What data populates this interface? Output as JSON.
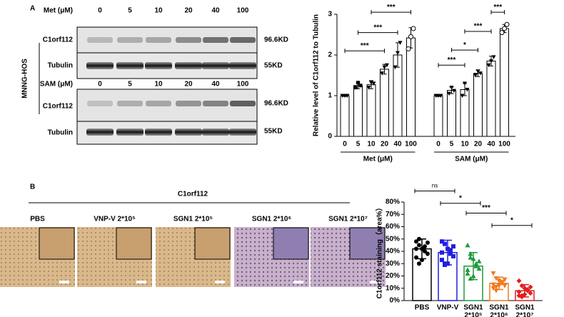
{
  "panels": {
    "a": "A",
    "b": "B"
  },
  "blot": {
    "cell_line": "MNNG-HOS",
    "band_sizes": {
      "c1orf112": "96.6KD",
      "tubulin": "55KD"
    },
    "row_labels": {
      "c1orf112": "C1orf112",
      "tubulin": "Tubulin"
    },
    "blocks": [
      {
        "treatment": "Met (μM)",
        "doses": [
          0,
          5,
          10,
          20,
          40,
          100
        ]
      },
      {
        "treatment": "SAM (μM)",
        "doses": [
          0,
          5,
          10,
          20,
          40,
          100
        ]
      }
    ]
  },
  "ihc": {
    "title": "C1orf112",
    "images": [
      "PBS",
      "VNP-V 2*10⁵",
      "SGN1 2*10⁵",
      "SGN1 2*10⁶",
      "SGN1 2*10⁷"
    ]
  },
  "chart_data": [
    {
      "type": "bar",
      "y_label": "Relative level of C1orf112 to Tubulin",
      "ylim": [
        0,
        3
      ],
      "yticks": [
        0,
        1,
        2,
        3
      ],
      "categories": [
        "0",
        "5",
        "10",
        "20",
        "40",
        "100"
      ],
      "series": [
        {
          "name": "Met (μM)",
          "color": "#000000",
          "values": [
            1.0,
            1.25,
            1.27,
            1.65,
            2.0,
            2.42
          ],
          "errors": [
            0.02,
            0.08,
            0.1,
            0.12,
            0.3,
            0.25
          ],
          "points": [
            [
              1,
              1,
              1
            ],
            [
              1.2,
              1.32,
              1.25
            ],
            [
              1.2,
              1.32,
              1.3
            ],
            [
              1.55,
              1.7,
              1.75
            ],
            [
              1.7,
              2.05,
              2.3
            ],
            [
              2.15,
              2.45,
              2.65
            ]
          ],
          "annotations": [
            {
              "from": 0,
              "to": 3,
              "y": 2.1,
              "label": "***"
            },
            {
              "from": 1,
              "to": 4,
              "y": 2.55,
              "label": "***"
            },
            {
              "from": 2,
              "to": 5,
              "y": 3.05,
              "label": "***"
            }
          ]
        },
        {
          "name": "SAM (μM)",
          "color": "#000000",
          "values": [
            1.0,
            1.13,
            1.15,
            1.55,
            1.85,
            2.65
          ],
          "errors": [
            0.02,
            0.08,
            0.15,
            0.08,
            0.12,
            0.1
          ],
          "points": [
            [
              1,
              1,
              1
            ],
            [
              1.05,
              1.2,
              1.12
            ],
            [
              1.0,
              1.3,
              1.15
            ],
            [
              1.5,
              1.6,
              1.55
            ],
            [
              1.75,
              1.85,
              1.95
            ],
            [
              2.55,
              2.65,
              2.75
            ]
          ],
          "annotations": [
            {
              "from": 0,
              "to": 2,
              "y": 1.75,
              "label": "***"
            },
            {
              "from": 1,
              "to": 3,
              "y": 2.12,
              "label": "*"
            },
            {
              "from": 2,
              "to": 4,
              "y": 2.58,
              "label": "***"
            },
            {
              "from": 4,
              "to": 5,
              "y": 3.05,
              "label": "***"
            }
          ]
        }
      ]
    },
    {
      "type": "dotbar",
      "y_label": "C1orf112 staining（area%）",
      "ylim": [
        0,
        80
      ],
      "yticks": [
        {
          "value": 0,
          "label": "0%"
        },
        {
          "value": 10,
          "label": "10%"
        },
        {
          "value": 20,
          "label": "20%"
        },
        {
          "value": 30,
          "label": "30%"
        },
        {
          "value": 40,
          "label": "40%"
        },
        {
          "value": 50,
          "label": "50%"
        },
        {
          "value": 60,
          "label": "60%"
        },
        {
          "value": 70,
          "label": "70%"
        },
        {
          "value": 80,
          "label": "80%"
        }
      ],
      "categories": [
        [
          "PBS"
        ],
        [
          "VNP-V"
        ],
        [
          "SGN1",
          "2*10⁵"
        ],
        [
          "SGN1",
          "2*10⁶"
        ],
        [
          "SGN1",
          "2*10⁷"
        ]
      ],
      "series": [
        {
          "colors": [
            "#000000",
            "#1f1fe0",
            "#1e9a3c",
            "#f07a1e",
            "#e01f1f"
          ],
          "values": [
            42,
            39,
            28,
            14,
            8
          ],
          "errors": [
            8,
            10,
            11,
            5,
            5
          ],
          "points": [
            [
              48,
              45,
              42,
              40,
              38,
              35,
              30,
              33,
              44,
              47,
              42,
              50
            ],
            [
              48,
              46,
              42,
              38,
              36,
              33,
              30,
              30,
              41,
              44,
              39,
              29
            ],
            [
              45,
              38,
              34,
              30,
              26,
              22,
              18,
              20,
              28,
              32,
              25,
              35
            ],
            [
              22,
              18,
              16,
              14,
              12,
              10,
              8,
              12,
              15,
              17,
              13,
              11
            ],
            [
              16,
              12,
              10,
              8,
              6,
              4,
              3,
              5,
              9,
              11,
              7,
              4
            ]
          ],
          "annotations": [
            {
              "from": 0,
              "to": 1,
              "y": 89,
              "label": "ns"
            },
            {
              "from": 1,
              "to": 2,
              "y": 79,
              "label": "*"
            },
            {
              "from": 2,
              "to": 3,
              "y": 71,
              "label": "***"
            },
            {
              "from": 3,
              "to": 4,
              "y": 61,
              "label": "*"
            }
          ]
        }
      ]
    }
  ]
}
